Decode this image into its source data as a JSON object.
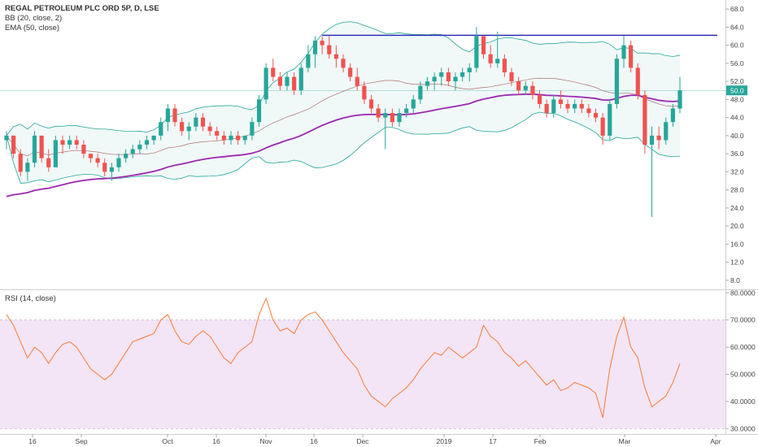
{
  "legend": {
    "title": "REGAL PETROLEUM PLC ORD 5P, D, LSE",
    "bb": "BB (20, close, 2)",
    "ema": "EMA (50, close)",
    "rsi": "RSI (14, close)"
  },
  "colors": {
    "up": "#26a69a",
    "down": "#ef5350",
    "ema": "#9c27b0",
    "bb_band": "#26a69a",
    "bb_basis": "#b07070",
    "resistance": "#2020b0",
    "price_line": "#26a69a",
    "rsi_line": "#f57c3a",
    "rsi_fill": "#f3e5f5"
  },
  "price_axis": {
    "ticks": [
      "8.0",
      "12.0",
      "16.0",
      "20.0",
      "24.0",
      "28.0",
      "32.0",
      "36.0",
      "40.0",
      "44.0",
      "48.0",
      "52.0",
      "56.0",
      "60.0",
      "64.0",
      "68.0"
    ],
    "last_price": "50.0"
  },
  "rsi_axis": {
    "ticks": [
      "30.0000",
      "40.0000",
      "50.0000",
      "60.0000",
      "70.0000",
      "80.0000"
    ]
  },
  "time_axis": {
    "labels": [
      "16",
      "Sep",
      "Oct",
      "16",
      "Nov",
      "16",
      "Dec",
      "2019",
      "17",
      "Feb",
      "Mar",
      "Apr"
    ]
  },
  "chart_data": [
    {
      "type": "candlestick",
      "title": "REGAL PETROLEUM PLC ORD 5P, D, LSE",
      "ylim": [
        6,
        70
      ],
      "resistance_level": 62.2,
      "last_price": 50.0,
      "candles": [
        [
          39,
          41,
          37,
          40
        ],
        [
          40,
          40,
          35,
          36
        ],
        [
          36,
          37,
          31,
          32
        ],
        [
          32,
          35,
          30,
          34
        ],
        [
          34,
          41,
          33,
          40
        ],
        [
          40,
          40,
          34,
          35
        ],
        [
          35,
          37,
          32,
          33
        ],
        [
          33,
          40,
          33,
          39
        ],
        [
          39,
          40,
          36,
          38
        ],
        [
          38,
          40,
          37,
          39
        ],
        [
          39,
          40,
          37,
          38
        ],
        [
          38,
          39,
          35,
          36
        ],
        [
          36,
          36,
          34,
          35
        ],
        [
          35,
          36,
          33,
          34
        ],
        [
          34,
          35,
          31,
          32
        ],
        [
          32,
          34,
          30,
          33
        ],
        [
          33,
          36,
          32,
          35
        ],
        [
          35,
          37,
          34,
          36
        ],
        [
          36,
          38,
          35,
          37
        ],
        [
          37,
          39,
          36,
          38
        ],
        [
          38,
          40,
          37,
          39
        ],
        [
          39,
          40,
          38,
          40
        ],
        [
          40,
          44,
          39,
          43
        ],
        [
          43,
          47,
          41,
          46
        ],
        [
          46,
          47,
          42,
          43
        ],
        [
          43,
          44,
          40,
          41
        ],
        [
          41,
          43,
          39,
          42
        ],
        [
          42,
          45,
          41,
          44
        ],
        [
          44,
          45,
          41,
          42
        ],
        [
          42,
          43,
          40,
          41
        ],
        [
          41,
          42,
          39,
          40
        ],
        [
          40,
          41,
          38,
          39
        ],
        [
          39,
          41,
          38,
          40
        ],
        [
          40,
          41,
          38,
          39
        ],
        [
          39,
          40,
          38,
          40
        ],
        [
          40,
          44,
          39,
          43
        ],
        [
          43,
          49,
          42,
          48
        ],
        [
          48,
          56,
          47,
          55
        ],
        [
          55,
          57,
          52,
          53
        ],
        [
          53,
          54,
          50,
          51
        ],
        [
          51,
          54,
          50,
          53
        ],
        [
          53,
          54,
          49,
          50
        ],
        [
          50,
          56,
          49,
          55
        ],
        [
          55,
          60,
          54,
          58
        ],
        [
          58,
          62,
          55,
          61
        ],
        [
          61,
          62,
          58,
          60
        ],
        [
          60,
          62,
          57,
          58
        ],
        [
          58,
          60,
          55,
          57
        ],
        [
          57,
          58,
          54,
          55
        ],
        [
          55,
          56,
          52,
          53
        ],
        [
          53,
          55,
          50,
          51
        ],
        [
          51,
          52,
          47,
          48
        ],
        [
          48,
          49,
          45,
          46
        ],
        [
          46,
          47,
          43,
          44
        ],
        [
          44,
          46,
          37,
          45
        ],
        [
          45,
          46,
          42,
          43
        ],
        [
          43,
          46,
          42,
          45
        ],
        [
          45,
          47,
          44,
          46
        ],
        [
          46,
          49,
          45,
          48
        ],
        [
          48,
          52,
          47,
          51
        ],
        [
          51,
          53,
          50,
          52
        ],
        [
          52,
          54,
          50,
          53
        ],
        [
          53,
          55,
          51,
          54
        ],
        [
          54,
          55,
          51,
          52
        ],
        [
          52,
          54,
          50,
          53
        ],
        [
          53,
          55,
          52,
          54
        ],
        [
          54,
          56,
          52,
          55
        ],
        [
          55,
          64,
          54,
          62
        ],
        [
          62,
          62,
          57,
          58
        ],
        [
          58,
          60,
          55,
          56
        ],
        [
          56,
          63,
          55,
          57
        ],
        [
          57,
          58,
          53,
          54
        ],
        [
          54,
          55,
          51,
          52
        ],
        [
          52,
          53,
          49,
          50
        ],
        [
          50,
          52,
          49,
          51
        ],
        [
          51,
          52,
          48,
          49
        ],
        [
          49,
          50,
          46,
          47
        ],
        [
          47,
          48,
          44,
          45
        ],
        [
          45,
          49,
          44,
          48
        ],
        [
          48,
          50,
          46,
          47
        ],
        [
          47,
          48,
          45,
          46
        ],
        [
          46,
          48,
          45,
          47
        ],
        [
          47,
          48,
          45,
          46
        ],
        [
          46,
          47,
          44,
          45
        ],
        [
          45,
          46,
          43,
          44
        ],
        [
          44,
          45,
          38,
          40
        ],
        [
          40,
          48,
          39,
          47
        ],
        [
          47,
          58,
          46,
          57
        ],
        [
          57,
          62,
          55,
          60
        ],
        [
          60,
          61,
          54,
          55
        ],
        [
          55,
          56,
          48,
          49
        ],
        [
          49,
          50,
          36,
          38
        ],
        [
          38,
          42,
          22,
          40
        ],
        [
          40,
          42,
          37,
          39
        ],
        [
          39,
          44,
          38,
          43
        ],
        [
          43,
          47,
          42,
          46
        ],
        [
          46,
          53,
          45,
          50
        ]
      ]
    },
    {
      "type": "line",
      "name": "RSI (14, close)",
      "ylim": [
        28,
        81
      ],
      "levels": [
        30,
        70
      ],
      "values": [
        72,
        68,
        62,
        56,
        60,
        58,
        54,
        58,
        61,
        62,
        60,
        56,
        52,
        50,
        48,
        50,
        54,
        58,
        62,
        63,
        64,
        65,
        70,
        72,
        66,
        62,
        61,
        64,
        66,
        64,
        60,
        56,
        54,
        58,
        60,
        62,
        72,
        78,
        70,
        66,
        67,
        65,
        70,
        72,
        73,
        70,
        66,
        62,
        58,
        55,
        52,
        46,
        42,
        40,
        38,
        41,
        43,
        45,
        48,
        52,
        55,
        58,
        57,
        60,
        58,
        56,
        58,
        60,
        68,
        64,
        62,
        58,
        56,
        53,
        55,
        52,
        49,
        46,
        48,
        44,
        45,
        47,
        46,
        45,
        43,
        34,
        52,
        64,
        71,
        60,
        56,
        45,
        38,
        40,
        42,
        47,
        54
      ]
    }
  ]
}
